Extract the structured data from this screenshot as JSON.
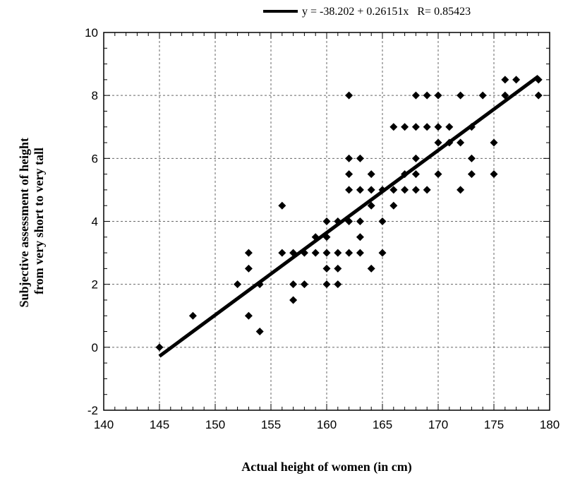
{
  "chart_data": {
    "type": "scatter",
    "title": "",
    "xlabel": "Actual height of women (in cm)",
    "ylabel_lines": [
      "Subjective assessment of height",
      "from very short to very tall"
    ],
    "xlim": [
      140,
      180
    ],
    "ylim": [
      -2,
      10
    ],
    "x_ticks": [
      "140",
      "145",
      "150",
      "155",
      "160",
      "165",
      "170",
      "175",
      "180"
    ],
    "y_ticks": [
      "-2",
      "0",
      "2",
      "4",
      "6",
      "8",
      "10"
    ],
    "grid": true,
    "legend": {
      "placement": "top-right",
      "label": "y = -38.202 + 0.26151x   R= 0.85423"
    },
    "regression": {
      "intercept": -38.202,
      "slope": 0.26151,
      "r": 0.85423,
      "x_range": [
        145,
        179
      ]
    },
    "points": [
      [
        145,
        0
      ],
      [
        148,
        1
      ],
      [
        152,
        2
      ],
      [
        153,
        3
      ],
      [
        153,
        2.5
      ],
      [
        153,
        1
      ],
      [
        154,
        2
      ],
      [
        154,
        0.5
      ],
      [
        156,
        4.5
      ],
      [
        156,
        3
      ],
      [
        157,
        3
      ],
      [
        157,
        2
      ],
      [
        157,
        1.5
      ],
      [
        158,
        3
      ],
      [
        158,
        2
      ],
      [
        159,
        3.5
      ],
      [
        159,
        3
      ],
      [
        160,
        4
      ],
      [
        160,
        3.5
      ],
      [
        160,
        3
      ],
      [
        160,
        2.5
      ],
      [
        160,
        2
      ],
      [
        161,
        4
      ],
      [
        161,
        3
      ],
      [
        161,
        2.5
      ],
      [
        161,
        2
      ],
      [
        162,
        8
      ],
      [
        162,
        6
      ],
      [
        162,
        5.5
      ],
      [
        162,
        5
      ],
      [
        162,
        4
      ],
      [
        162,
        3
      ],
      [
        163,
        6
      ],
      [
        163,
        5
      ],
      [
        163,
        4
      ],
      [
        163,
        3.5
      ],
      [
        163,
        3
      ],
      [
        164,
        5.5
      ],
      [
        164,
        5
      ],
      [
        164,
        4.5
      ],
      [
        164,
        2.5
      ],
      [
        165,
        5
      ],
      [
        165,
        4
      ],
      [
        165,
        3
      ],
      [
        166,
        7
      ],
      [
        166,
        5
      ],
      [
        166,
        4.5
      ],
      [
        167,
        7
      ],
      [
        167,
        5.5
      ],
      [
        167,
        5
      ],
      [
        168,
        8
      ],
      [
        168,
        7
      ],
      [
        168,
        6
      ],
      [
        168,
        5.5
      ],
      [
        168,
        5
      ],
      [
        169,
        8
      ],
      [
        169,
        7
      ],
      [
        169,
        5
      ],
      [
        170,
        8
      ],
      [
        170,
        7
      ],
      [
        170,
        6.5
      ],
      [
        170,
        5.5
      ],
      [
        171,
        7
      ],
      [
        171,
        6.5
      ],
      [
        172,
        8
      ],
      [
        172,
        6.5
      ],
      [
        172,
        5
      ],
      [
        173,
        7
      ],
      [
        173,
        6
      ],
      [
        173,
        5.5
      ],
      [
        174,
        8
      ],
      [
        175,
        6.5
      ],
      [
        175,
        5.5
      ],
      [
        176,
        8.5
      ],
      [
        176,
        8
      ],
      [
        177,
        8.5
      ],
      [
        179,
        8.5
      ],
      [
        179,
        8
      ]
    ]
  }
}
